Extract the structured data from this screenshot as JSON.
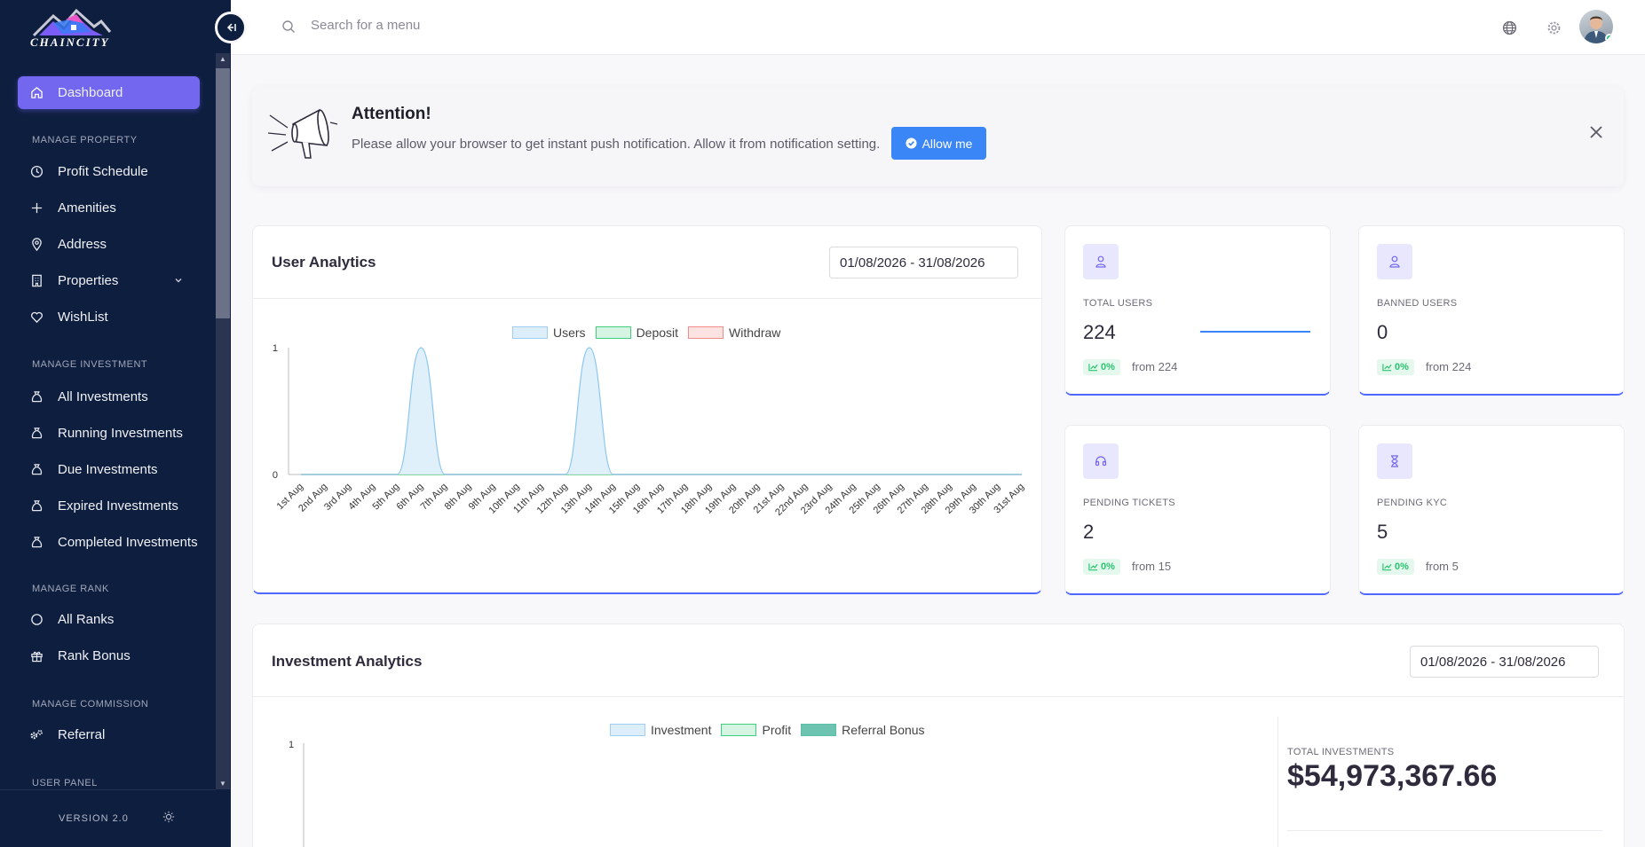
{
  "brand": {
    "name": "CHAINCITY",
    "version": "VERSION 2.0"
  },
  "sidebar": {
    "dashboard": {
      "label": "Dashboard",
      "icon": "home-icon"
    },
    "sections": [
      {
        "title": "MANAGE PROPERTY",
        "items": [
          {
            "label": "Profit Schedule",
            "icon": "clock-icon"
          },
          {
            "label": "Amenities",
            "icon": "plus-icon"
          },
          {
            "label": "Address",
            "icon": "map-pin-icon"
          },
          {
            "label": "Properties",
            "icon": "building-icon"
          },
          {
            "label": "WishList",
            "icon": "heart-icon"
          }
        ]
      },
      {
        "title": "MANAGE INVESTMENT",
        "items": [
          {
            "label": "All Investments",
            "icon": "money-bag-icon"
          },
          {
            "label": "Running Investments",
            "icon": "money-bag-icon"
          },
          {
            "label": "Due Investments",
            "icon": "money-bag-icon"
          },
          {
            "label": "Expired Investments",
            "icon": "money-bag-icon"
          },
          {
            "label": "Completed Investments",
            "icon": "money-bag-icon"
          }
        ]
      },
      {
        "title": "MANAGE RANK",
        "items": [
          {
            "label": "All Ranks",
            "icon": "circle-icon"
          },
          {
            "label": "Rank Bonus",
            "icon": "gift-icon"
          }
        ]
      },
      {
        "title": "MANAGE COMMISSION",
        "items": [
          {
            "label": "Referral",
            "icon": "gears-icon"
          }
        ]
      },
      {
        "title": "USER PANEL",
        "items": []
      }
    ]
  },
  "topbar": {
    "search_placeholder": "Search for a menu"
  },
  "attention": {
    "title": "Attention!",
    "text": "Please allow your browser to get instant push notification. Allow it from notification setting.",
    "button": "Allow me"
  },
  "user_analytics": {
    "title": "User Analytics",
    "date_range": "01/08/2026 - 31/08/2026",
    "legend": [
      "Users",
      "Deposit",
      "Withdraw"
    ]
  },
  "stats": [
    {
      "label": "TOTAL USERS",
      "value": "224",
      "badge": "0%",
      "from": "from 224",
      "icon": "user-icon"
    },
    {
      "label": "BANNED USERS",
      "value": "0",
      "badge": "0%",
      "from": "from 224",
      "icon": "user-icon"
    },
    {
      "label": "PENDING TICKETS",
      "value": "2",
      "badge": "0%",
      "from": "from 15",
      "icon": "headset-icon"
    },
    {
      "label": "PENDING KYC",
      "value": "5",
      "badge": "0%",
      "from": "from 5",
      "icon": "hourglass-icon"
    }
  ],
  "investment_analytics": {
    "title": "Investment Analytics",
    "date_range": "01/08/2026 - 31/08/2026",
    "legend": [
      "Investment",
      "Profit",
      "Referral Bonus"
    ],
    "total_label": "TOTAL INVESTMENTS",
    "total_value": "$54,973,367.66"
  },
  "colors": {
    "accent": "#7367f0",
    "sidebar": "#0e1e3f",
    "users": "#9fcdf3",
    "deposit": "#3fcf7c",
    "withdraw": "#f48b8b",
    "referral": "#5bbfa8"
  },
  "chart_data": [
    {
      "type": "area",
      "title": "User Analytics",
      "categories": [
        "1st Aug",
        "2nd Aug",
        "3rd Aug",
        "4th Aug",
        "5th Aug",
        "6th Aug",
        "7th Aug",
        "8th Aug",
        "9th Aug",
        "10th Aug",
        "11th Aug",
        "12th Aug",
        "13th Aug",
        "14th Aug",
        "15th Aug",
        "16th Aug",
        "17th Aug",
        "18th Aug",
        "19th Aug",
        "20th Aug",
        "21st Aug",
        "22nd Aug",
        "23rd Aug",
        "24th Aug",
        "25th Aug",
        "26th Aug",
        "27th Aug",
        "28th Aug",
        "29th Aug",
        "30th Aug",
        "31st Aug"
      ],
      "series": [
        {
          "name": "Users",
          "values": [
            0,
            0,
            0,
            0,
            0,
            1,
            0,
            0,
            0,
            0,
            0,
            0,
            1,
            0,
            0,
            0,
            0,
            0,
            0,
            0,
            0,
            0,
            0,
            0,
            0,
            0,
            0,
            0,
            0,
            0,
            0
          ]
        },
        {
          "name": "Deposit",
          "values": [
            0,
            0,
            0,
            0,
            0,
            0,
            0,
            0,
            0,
            0,
            0,
            0,
            0,
            0,
            0,
            0,
            0,
            0,
            0,
            0,
            0,
            0,
            0,
            0,
            0,
            0,
            0,
            0,
            0,
            0,
            0
          ]
        },
        {
          "name": "Withdraw",
          "values": [
            0,
            0,
            0,
            0,
            0,
            0,
            0,
            0,
            0,
            0,
            0,
            0,
            0,
            0,
            0,
            0,
            0,
            0,
            0,
            0,
            0,
            0,
            0,
            0,
            0,
            0,
            0,
            0,
            0,
            0,
            0
          ]
        }
      ],
      "yticks": [
        "0",
        "1"
      ],
      "ylim": [
        0,
        1
      ],
      "legend": "top-center",
      "grid": false
    },
    {
      "type": "area",
      "title": "Investment Analytics",
      "series": [
        {
          "name": "Investment",
          "values": []
        },
        {
          "name": "Profit",
          "values": []
        },
        {
          "name": "Referral Bonus",
          "values": []
        }
      ],
      "yticks": [
        "1"
      ],
      "legend": "top-center"
    }
  ]
}
